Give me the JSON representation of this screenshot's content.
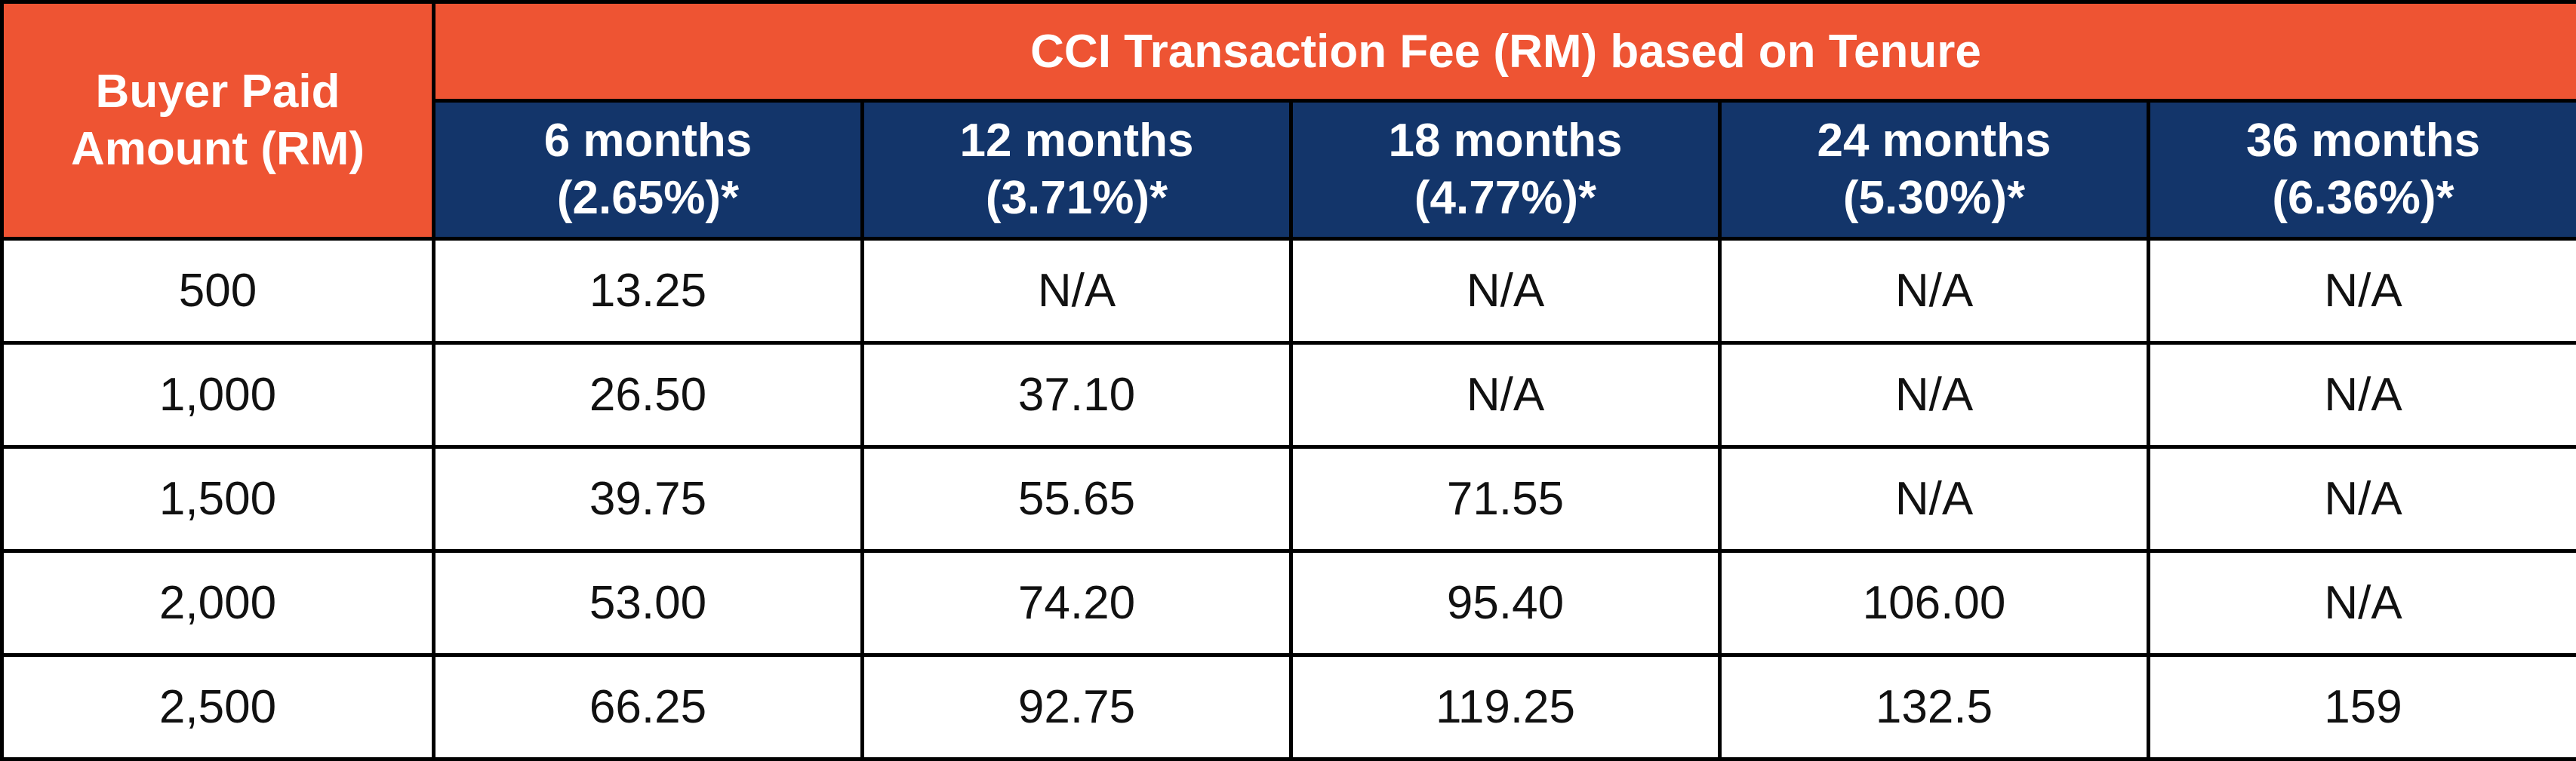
{
  "colors": {
    "header_orange": "#ee5433",
    "header_navy": "#13356a",
    "header_text": "#ffffff",
    "cell_text": "#111111",
    "border": "#000000"
  },
  "chart_data": {
    "type": "table",
    "title": "",
    "row_header": {
      "line1": "Buyer Paid",
      "line2": "Amount (RM)"
    },
    "group_header": "CCI Transaction Fee (RM) based on Tenure",
    "columns": [
      {
        "tenure": "6 months",
        "rate": "(2.65%)*"
      },
      {
        "tenure": "12 months",
        "rate": "(3.71%)*"
      },
      {
        "tenure": "18 months",
        "rate": "(4.77%)*"
      },
      {
        "tenure": "24 months",
        "rate": "(5.30%)*"
      },
      {
        "tenure": "36 months",
        "rate": "(6.36%)*"
      }
    ],
    "rows": [
      {
        "amount": "500",
        "fees": [
          "13.25",
          "N/A",
          "N/A",
          "N/A",
          "N/A"
        ]
      },
      {
        "amount": "1,000",
        "fees": [
          "26.50",
          "37.10",
          "N/A",
          "N/A",
          "N/A"
        ]
      },
      {
        "amount": "1,500",
        "fees": [
          "39.75",
          "55.65",
          "71.55",
          "N/A",
          "N/A"
        ]
      },
      {
        "amount": "2,000",
        "fees": [
          "53.00",
          "74.20",
          "95.40",
          "106.00",
          "N/A"
        ]
      },
      {
        "amount": "2,500",
        "fees": [
          "66.25",
          "92.75",
          "119.25",
          "132.5",
          "159"
        ]
      }
    ]
  }
}
